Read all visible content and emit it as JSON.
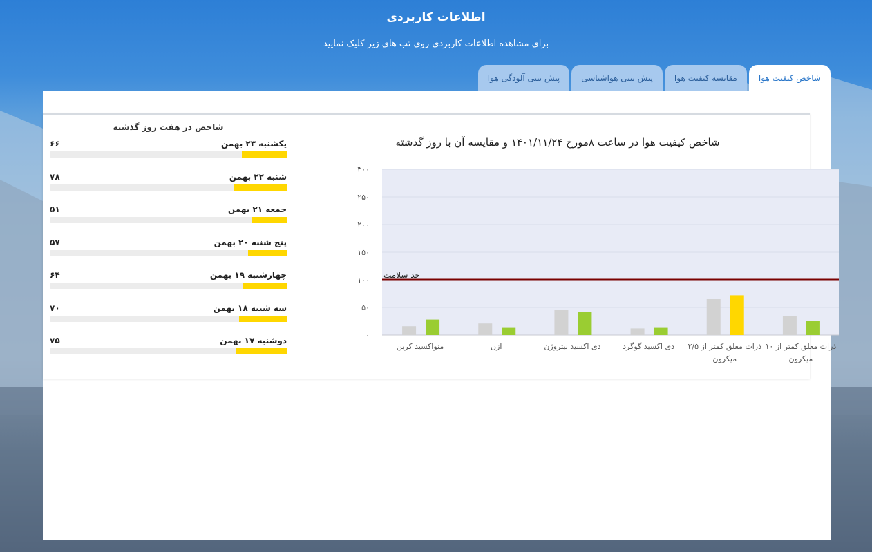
{
  "header": {
    "title": "اطلاعات کاربردی",
    "subtitle": "برای مشاهده اطلاعات کاربردی روی تب های زیر کلیک نمایید"
  },
  "tabs": [
    {
      "label": "شاخص کیفیت هوا",
      "active": true
    },
    {
      "label": "مقایسه کیفیت هوا",
      "active": false
    },
    {
      "label": "پیش بینی هواشناسی",
      "active": false
    },
    {
      "label": "پیش بینی آلودگی هوا",
      "active": false
    }
  ],
  "week": {
    "title": "شاخص در هفت روز گذشته",
    "days": [
      {
        "label": "یکشنبه ۲۳ بهمن",
        "value": "۶۶",
        "index": 66
      },
      {
        "label": "شنبه ۲۲ بهمن",
        "value": "۷۸",
        "index": 78
      },
      {
        "label": "جمعه ۲۱ بهمن",
        "value": "۵۱",
        "index": 51
      },
      {
        "label": "پنج شنبه ۲۰ بهمن",
        "value": "۵۷",
        "index": 57
      },
      {
        "label": "چهارشنبه ۱۹ بهمن",
        "value": "۶۴",
        "index": 64
      },
      {
        "label": "سه شنبه ۱۸ بهمن",
        "value": "۷۰",
        "index": 70
      },
      {
        "label": "دوشنبه ۱۷ بهمن",
        "value": "۷۵",
        "index": 75
      }
    ],
    "bar_color": "#ffd700"
  },
  "chart_data": {
    "type": "bar",
    "title": "شاخص کیفیت هوا در ساعت ۸مورخ ۱۴۰۱/۱۱/۲۴ و مقایسه آن با روز گذشته",
    "ylim": [
      0,
      300
    ],
    "yticks": [
      0,
      50,
      100,
      150,
      200,
      250,
      300
    ],
    "ytick_labels": [
      "۰",
      "۵۰",
      "۱۰۰",
      "۱۵۰",
      "۲۰۰",
      "۲۵۰",
      "۳۰۰"
    ],
    "categories": [
      [
        "ذرات معلق کمتر از ۱۰",
        "میکرون"
      ],
      [
        "ذرات معلق کمتر از ۲/۵",
        "میکرون"
      ],
      [
        "دی اکسید گوگرد"
      ],
      [
        "دی اکسید نیتروژن"
      ],
      [
        "ازن"
      ],
      [
        "منواکسید کربن"
      ]
    ],
    "series": [
      {
        "values": [
          35,
          65,
          12,
          45,
          21,
          16
        ],
        "color": "#d2d2d2"
      },
      {
        "values": [
          26,
          72,
          13,
          42,
          13,
          28
        ],
        "colors": [
          "#9acd32",
          "#ffd700",
          "#9acd32",
          "#9acd32",
          "#9acd32",
          "#9acd32"
        ]
      }
    ],
    "threshold": {
      "value": 100,
      "label": "حد سلامت",
      "color": "#7a0000"
    },
    "plot_bg": "#e8ebf6",
    "grid": true
  }
}
